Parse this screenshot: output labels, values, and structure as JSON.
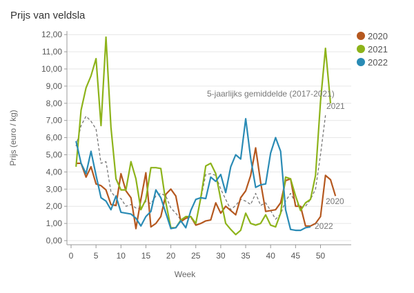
{
  "chart_data": {
    "type": "line",
    "title": "Prijs van veldsla",
    "xlabel": "Week",
    "ylabel": "Prijs (euro / kg)",
    "xlim": [
      0,
      53
    ],
    "ylim": [
      0,
      12
    ],
    "xticks": [
      "0",
      "5",
      "10",
      "15",
      "20",
      "25",
      "30",
      "35",
      "40",
      "45",
      "50"
    ],
    "yticks": [
      "0,00",
      "1,00",
      "2,00",
      "3,00",
      "4,00",
      "5,00",
      "6,00",
      "7,00",
      "8,00",
      "9,00",
      "10,00",
      "11,00",
      "12,00"
    ],
    "grid": true,
    "legend_position": "top-right",
    "series": [
      {
        "name": "2020",
        "color": "#b5581f",
        "dashed": false,
        "end_label": "2020",
        "values": [
          4.5,
          4.5,
          3.7,
          4.3,
          3.3,
          3.2,
          2.95,
          2.1,
          2.05,
          3.9,
          2.9,
          2.5,
          0.7,
          2.4,
          3.95,
          0.8,
          1.0,
          1.4,
          2.7,
          3.0,
          2.6,
          1.1,
          1.3,
          1.4,
          0.9,
          1.0,
          1.15,
          1.2,
          2.2,
          1.6,
          2.0,
          1.75,
          1.5,
          2.5,
          2.9,
          3.8,
          5.4,
          3.4,
          1.7,
          1.75,
          1.8,
          2.2,
          3.5,
          3.6,
          2.0,
          2.0,
          0.85,
          0.85,
          1.0,
          1.4,
          3.8,
          3.55,
          2.6
        ]
      },
      {
        "name": "2021",
        "color": "#8db31a",
        "dashed": false,
        "end_label": "2021",
        "values": [
          4.3,
          7.6,
          8.9,
          9.6,
          10.6,
          6.7,
          11.85,
          6.6,
          3.6,
          2.95,
          2.95,
          4.6,
          3.6,
          1.8,
          2.4,
          4.25,
          4.25,
          4.2,
          2.2,
          0.75,
          0.75,
          1.2,
          1.4,
          1.4,
          1.0,
          2.5,
          4.35,
          4.5,
          3.9,
          2.4,
          1.0,
          0.65,
          0.35,
          0.6,
          1.6,
          1.0,
          0.9,
          1.0,
          1.5,
          0.9,
          0.8,
          1.6,
          3.7,
          3.6,
          2.6,
          1.75,
          2.2,
          2.4,
          3.8,
          8.1,
          11.2,
          8.0
        ]
      },
      {
        "name": "2022",
        "color": "#2a8bb5",
        "dashed": false,
        "end_label": "2022",
        "values": [
          5.8,
          4.5,
          3.9,
          5.2,
          3.8,
          2.5,
          2.3,
          1.8,
          2.6,
          1.65,
          1.6,
          1.55,
          1.3,
          0.85,
          1.4,
          1.7,
          2.95,
          2.5,
          1.6,
          0.7,
          0.75,
          1.15,
          0.75,
          1.75,
          2.4,
          2.5,
          2.45,
          3.7,
          3.45,
          3.85,
          2.8,
          4.3,
          5.0,
          4.75,
          7.1,
          4.8,
          3.1,
          3.25,
          3.3,
          5.1,
          6.0,
          5.2,
          1.8,
          0.65,
          0.6,
          0.6,
          0.75,
          0.8
        ]
      },
      {
        "name": "5-jaarlijks gemiddelde (2017-2021)",
        "color": "#777777",
        "dashed": true,
        "end_label": "5-jaarlijks gemiddelde (2017-2021)",
        "values": [
          5.5,
          6.7,
          7.25,
          6.95,
          6.5,
          4.5,
          4.6,
          2.85,
          2.5,
          2.45,
          2.0,
          2.1,
          1.9,
          1.85,
          2.3,
          2.15,
          2.6,
          2.75,
          2.6,
          1.9,
          1.6,
          1.2,
          1.3,
          1.3,
          1.05,
          2.4,
          3.85,
          3.9,
          3.8,
          3.0,
          2.4,
          1.8,
          2.05,
          2.4,
          2.3,
          2.1,
          2.75,
          2.05,
          2.2,
          1.75,
          1.25,
          1.55,
          2.3,
          2.75,
          2.2,
          1.95,
          2.0,
          2.4,
          3.0,
          5.0,
          7.3
        ]
      }
    ],
    "legend": [
      "2020",
      "2021",
      "2022"
    ]
  }
}
